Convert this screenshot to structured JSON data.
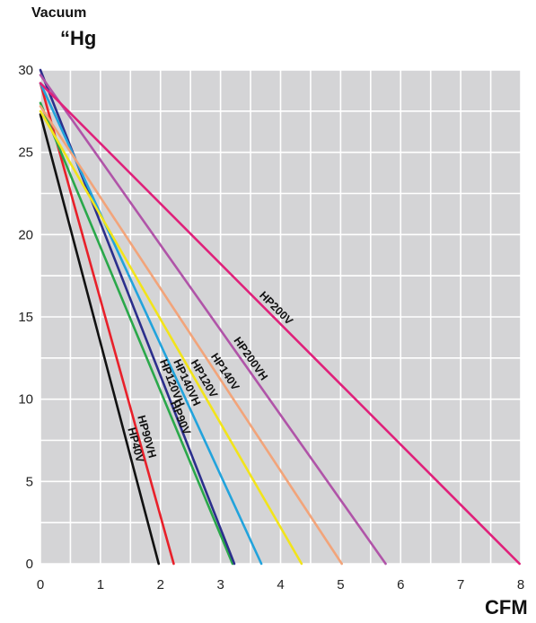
{
  "chart_data": {
    "type": "line",
    "title": "",
    "ylabel_line1": "Vacuum",
    "ylabel_line2": "“Hg",
    "xlabel": "CFM",
    "xlim": [
      0,
      8
    ],
    "ylim": [
      0,
      30
    ],
    "xticks": [
      "0",
      "1",
      "2",
      "3",
      "4",
      "5",
      "6",
      "7",
      "8"
    ],
    "yticks": [
      "0",
      "5",
      "10",
      "15",
      "20",
      "25",
      "30"
    ],
    "grid": true,
    "background": "#d4d4d6",
    "series": [
      {
        "name": "HP40V",
        "color": "#111111",
        "x": [
          0,
          1.97
        ],
        "y": [
          27.3,
          0
        ],
        "label_at": 0.74
      },
      {
        "name": "HP90VH",
        "color": "#e8202a",
        "x": [
          0,
          2.22
        ],
        "y": [
          29.2,
          0
        ],
        "label_at": 0.74
      },
      {
        "name": "HP90V",
        "color": "#2aa84a",
        "x": [
          0,
          3.2
        ],
        "y": [
          28.0,
          0
        ],
        "label_at": 0.69
      },
      {
        "name": "HP120VH",
        "color": "#2c2f8c",
        "x": [
          0,
          3.23
        ],
        "y": [
          30.0,
          0
        ],
        "label_at": 0.64
      },
      {
        "name": "HP140VH",
        "color": "#22a3dc",
        "x": [
          0,
          3.68
        ],
        "y": [
          29.2,
          0
        ],
        "label_at": 0.63
      },
      {
        "name": "HP120V",
        "color": "#f2e41a",
        "x": [
          0,
          4.35
        ],
        "y": [
          27.5,
          0
        ],
        "label_at": 0.6
      },
      {
        "name": "HP140V",
        "color": "#f2a47a",
        "x": [
          0,
          5.02
        ],
        "y": [
          27.8,
          0
        ],
        "label_at": 0.59
      },
      {
        "name": "HP200VH",
        "color": "#b054a8",
        "x": [
          0,
          5.75
        ],
        "y": [
          29.7,
          0
        ],
        "label_at": 0.59
      },
      {
        "name": "HP200V",
        "color": "#e0207a",
        "x": [
          0,
          7.98
        ],
        "y": [
          29.2,
          0
        ],
        "label_at": 0.48
      }
    ]
  }
}
